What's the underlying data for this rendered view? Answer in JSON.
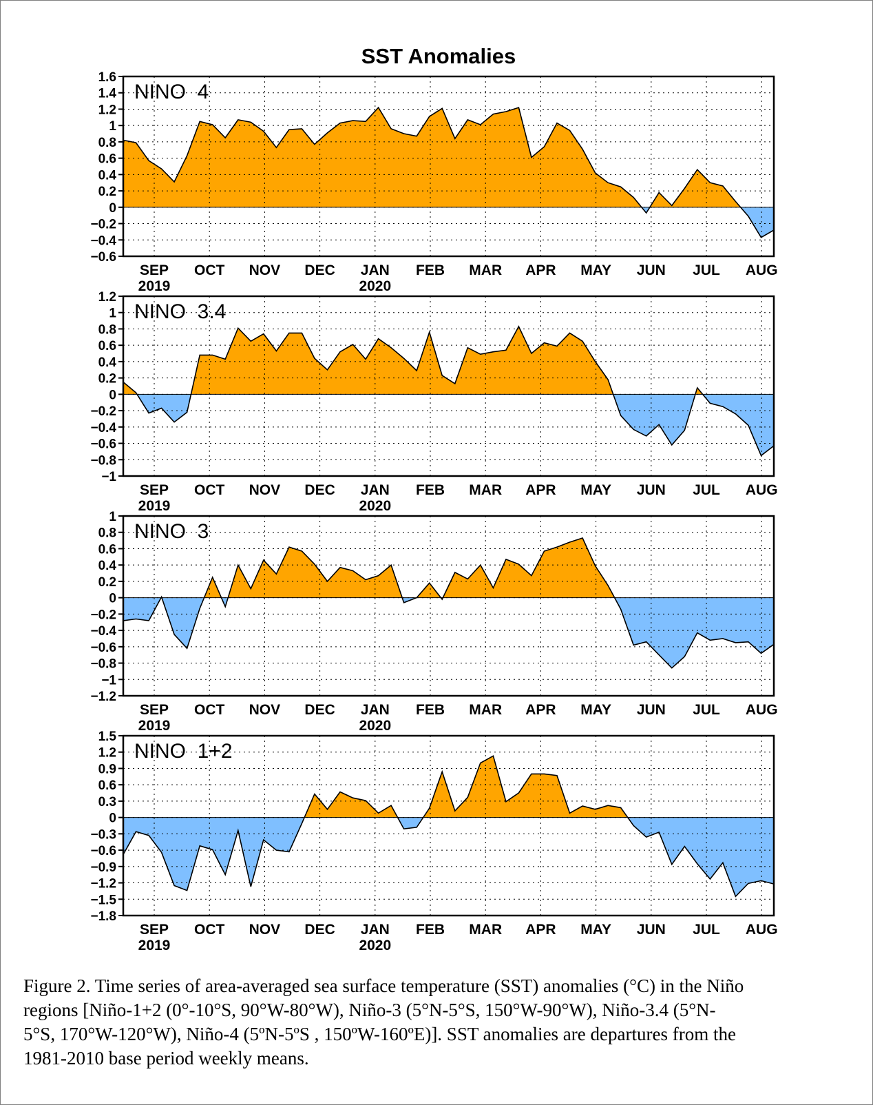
{
  "figure_title": "SST Anomalies",
  "caption": "Figure 2. Time series of area-averaged sea surface temperature (SST) anomalies (°C) in the Niño\nregions [Niño-1+2 (0°-10°S, 90°W-80°W), Niño-3 (5°N-5°S, 150°W-90°W), Niño-3.4 (5°N-\n5°S, 170°W-120°W), Niño-4 (5ºN-5ºS , 150ºW-160ºE)]. SST anomalies are departures from the\n1981-2010 base period weekly means.",
  "colors": {
    "positive": "#ffa500",
    "negative": "#7fbfff",
    "line": "#000000",
    "grid": "#000000"
  },
  "x_axis": {
    "month_labels": [
      "SEP",
      "OCT",
      "NOV",
      "DEC",
      "JAN",
      "FEB",
      "MAR",
      "APR",
      "MAY",
      "JUN",
      "JUL",
      "AUG"
    ],
    "year_labels": [
      {
        "under": "SEP",
        "text": "2019"
      },
      {
        "under": "JAN",
        "text": "2020"
      }
    ]
  },
  "chart_data": [
    {
      "type": "area",
      "panel_label": "NINO  4",
      "ylim": [
        -0.6,
        1.6
      ],
      "yticks": [
        -0.6,
        -0.4,
        -0.2,
        0,
        0.2,
        0.4,
        0.6,
        0.8,
        1,
        1.2,
        1.4,
        1.6
      ],
      "ytick_labels": [
        "−0.6",
        "−0.4",
        "−0.2",
        "0",
        "0.2",
        "0.4",
        "0.6",
        "0.8",
        "1",
        "1.2",
        "1.4",
        "1.6"
      ],
      "values": [
        0.82,
        0.79,
        0.57,
        0.47,
        0.31,
        0.63,
        1.05,
        1.01,
        0.85,
        1.07,
        1.04,
        0.93,
        0.73,
        0.95,
        0.96,
        0.77,
        0.91,
        1.03,
        1.06,
        1.05,
        1.22,
        0.96,
        0.9,
        0.87,
        1.11,
        1.21,
        0.84,
        1.07,
        1.01,
        1.14,
        1.17,
        1.22,
        0.61,
        0.74,
        1.03,
        0.94,
        0.71,
        0.42,
        0.3,
        0.25,
        0.12,
        -0.07,
        0.18,
        0.02,
        0.23,
        0.46,
        0.3,
        0.26,
        0.07,
        -0.11,
        -0.37,
        -0.28
      ]
    },
    {
      "type": "area",
      "panel_label": "NINO  3.4",
      "ylim": [
        -1,
        1.2
      ],
      "yticks": [
        -1,
        -0.8,
        -0.6,
        -0.4,
        -0.2,
        0,
        0.2,
        0.4,
        0.6,
        0.8,
        1,
        1.2
      ],
      "ytick_labels": [
        "−1",
        "−0.8",
        "−0.6",
        "−0.4",
        "−0.2",
        "0",
        "0.2",
        "0.4",
        "0.6",
        "0.8",
        "1",
        "1.2"
      ],
      "values": [
        0.15,
        0.02,
        -0.23,
        -0.17,
        -0.34,
        -0.22,
        0.48,
        0.48,
        0.43,
        0.81,
        0.65,
        0.74,
        0.53,
        0.75,
        0.75,
        0.44,
        0.3,
        0.52,
        0.61,
        0.43,
        0.68,
        0.57,
        0.44,
        0.29,
        0.76,
        0.23,
        0.13,
        0.57,
        0.49,
        0.52,
        0.54,
        0.83,
        0.5,
        0.63,
        0.59,
        0.75,
        0.65,
        0.4,
        0.18,
        -0.26,
        -0.43,
        -0.51,
        -0.37,
        -0.62,
        -0.44,
        0.08,
        -0.11,
        -0.15,
        -0.24,
        -0.38,
        -0.75,
        -0.63
      ]
    },
    {
      "type": "area",
      "panel_label": "NINO  3",
      "ylim": [
        -1.2,
        1
      ],
      "yticks": [
        -1.2,
        -1,
        -0.8,
        -0.6,
        -0.4,
        -0.2,
        0,
        0.2,
        0.4,
        0.6,
        0.8,
        1
      ],
      "ytick_labels": [
        "−1.2",
        "−1",
        "−0.8",
        "−0.6",
        "−0.4",
        "−0.2",
        "0",
        "0.2",
        "0.4",
        "0.6",
        "0.8",
        "1"
      ],
      "values": [
        -0.28,
        -0.26,
        -0.28,
        0.01,
        -0.45,
        -0.62,
        -0.13,
        0.25,
        -0.11,
        0.4,
        0.11,
        0.46,
        0.29,
        0.62,
        0.57,
        0.41,
        0.2,
        0.37,
        0.33,
        0.22,
        0.27,
        0.4,
        -0.06,
        0.0,
        0.18,
        -0.02,
        0.31,
        0.23,
        0.4,
        0.12,
        0.47,
        0.41,
        0.27,
        0.57,
        0.62,
        0.68,
        0.73,
        0.39,
        0.15,
        -0.14,
        -0.58,
        -0.54,
        -0.7,
        -0.86,
        -0.72,
        -0.43,
        -0.52,
        -0.5,
        -0.55,
        -0.54,
        -0.68,
        -0.57
      ]
    },
    {
      "type": "area",
      "panel_label": "NINO  1+2",
      "ylim": [
        -1.8,
        1.5
      ],
      "yticks": [
        -1.8,
        -1.5,
        -1.2,
        -0.9,
        -0.6,
        -0.3,
        0,
        0.3,
        0.6,
        0.9,
        1.2,
        1.5
      ],
      "ytick_labels": [
        "−1.8",
        "−1.5",
        "−1.2",
        "−0.9",
        "−0.6",
        "−0.3",
        "0",
        "0.3",
        "0.6",
        "0.9",
        "1.2",
        "1.5"
      ],
      "values": [
        -0.68,
        -0.26,
        -0.33,
        -0.64,
        -1.25,
        -1.34,
        -0.52,
        -0.59,
        -1.05,
        -0.24,
        -1.27,
        -0.41,
        -0.6,
        -0.63,
        -0.11,
        0.43,
        0.15,
        0.47,
        0.36,
        0.31,
        0.08,
        0.22,
        -0.21,
        -0.18,
        0.17,
        0.84,
        0.12,
        0.37,
        1.0,
        1.13,
        0.29,
        0.45,
        0.8,
        0.8,
        0.77,
        0.08,
        0.21,
        0.15,
        0.22,
        0.18,
        -0.15,
        -0.36,
        -0.27,
        -0.86,
        -0.53,
        -0.85,
        -1.13,
        -0.83,
        -1.45,
        -1.21,
        -1.16,
        -1.22
      ]
    }
  ]
}
